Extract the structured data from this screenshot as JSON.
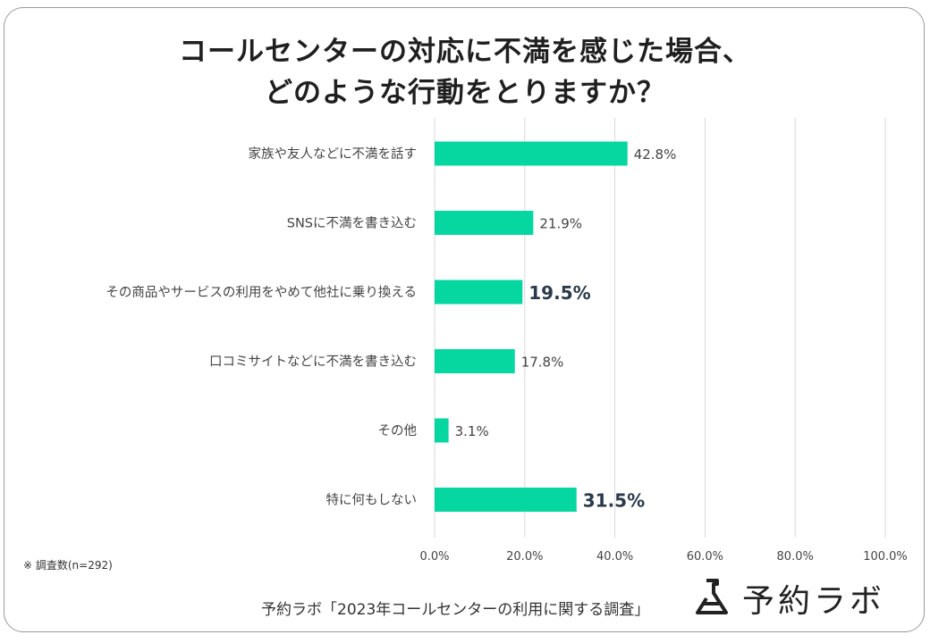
{
  "title_line1": "コールセンターの対応に不満を感じた場合、",
  "title_line2": "どのような行動をとりますか？",
  "note": "※ 調査数(n=292)",
  "source": "予約ラボ「2023年コールセンターの利用に関する調査」",
  "brand": {
    "name": "予約ラボ",
    "icon": "lab-flask-icon"
  },
  "colors": {
    "bar": "#06d6a0",
    "grid": "#d9d9d9",
    "label": "#444444",
    "emphasis": "#2a3a4a"
  },
  "chart_data": {
    "type": "bar",
    "orientation": "horizontal",
    "categories": [
      "家族や友人などに不満を話す",
      "SNSに不満を書き込む",
      "その商品やサービスの利用をやめて他社に乗り換える",
      "口コミサイトなどに不満を書き込む",
      "その他",
      "特に何もしない"
    ],
    "values": [
      42.8,
      21.9,
      19.5,
      17.8,
      3.1,
      31.5
    ],
    "value_labels": [
      "42.8%",
      "21.9%",
      "19.5%",
      "17.8%",
      "3.1%",
      "31.5%"
    ],
    "emphasized": [
      false,
      false,
      true,
      false,
      false,
      true
    ],
    "xlim": [
      0,
      100
    ],
    "xticks": [
      "0.0%",
      "20.0%",
      "40.0%",
      "60.0%",
      "80.0%",
      "100.0%"
    ],
    "grid": true,
    "legend": "none"
  }
}
